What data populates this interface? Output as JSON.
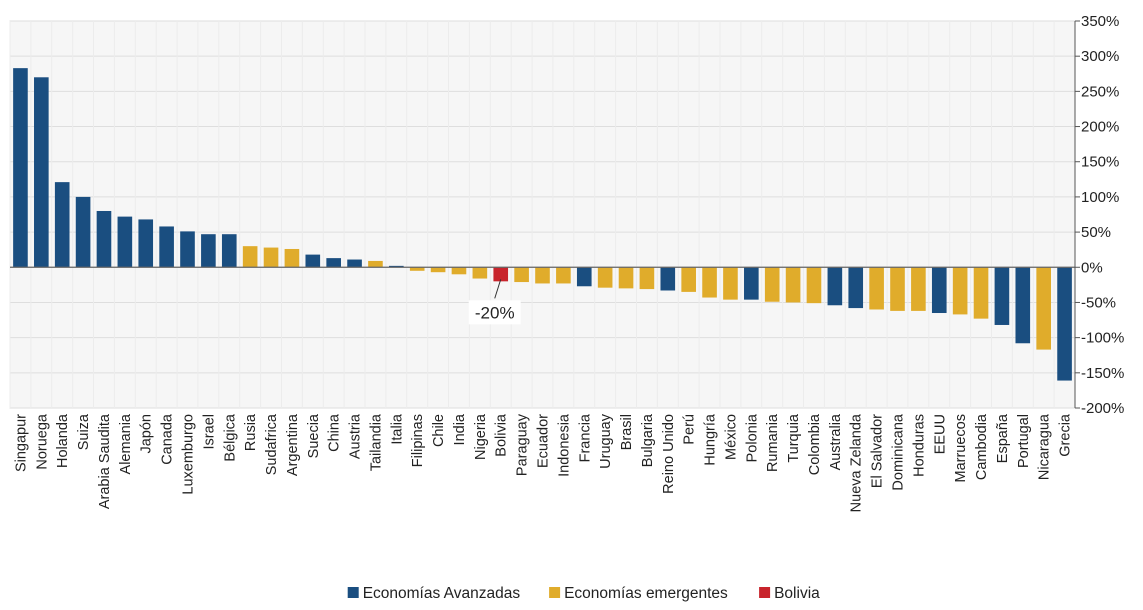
{
  "chart_data": {
    "type": "bar",
    "title": "",
    "xlabel": "",
    "ylabel": "",
    "ylim": [
      -200,
      350
    ],
    "y_ticks": [
      350,
      300,
      250,
      200,
      150,
      100,
      50,
      0,
      -50,
      -100,
      -150,
      -200
    ],
    "y_tick_labels": [
      "350%",
      "300%",
      "250%",
      "200%",
      "150%",
      "100%",
      "50%",
      "0%",
      "-50%",
      "-100%",
      "-150%",
      "-200%"
    ],
    "y_axis_side": "right",
    "grid": true,
    "legend_position": "bottom",
    "groups": [
      {
        "key": "adv",
        "label": "Economías Avanzadas",
        "color": "#1a4e80"
      },
      {
        "key": "emg",
        "label": "Economías emergentes",
        "color": "#e0ac2b"
      },
      {
        "key": "bol",
        "label": "Bolivia",
        "color": "#c8242c"
      }
    ],
    "categories": [
      "Singapur",
      "Noruega",
      "Holanda",
      "Suiza",
      "Arabia Saudita",
      "Alemania",
      "Japón",
      "Canada",
      "Luxemburgo",
      "Israel",
      "Bélgica",
      "Rusia",
      "Sudafrica",
      "Argentina",
      "Suecia",
      "China",
      "Austria",
      "Tailandia",
      "Italia",
      "Filipinas",
      "Chile",
      "India",
      "Nigeria",
      "Bolivia",
      "Paraguay",
      "Ecuador",
      "Indonesia",
      "Francia",
      "Uruguay",
      "Brasil",
      "Bulgaria",
      "Reino Unido",
      "Perú",
      "Hungría",
      "México",
      "Polonia",
      "Rumania",
      "Turquia",
      "Colombia",
      "Australia",
      "Nueva Zelanda",
      "El Salvador",
      "Dominicana",
      "Honduras",
      "EEUU",
      "Marruecos",
      "Cambodia",
      "España",
      "Portugal",
      "Nicaragua",
      "Grecia"
    ],
    "values": [
      283,
      270,
      121,
      100,
      80,
      72,
      68,
      58,
      51,
      47,
      47,
      30,
      28,
      26,
      18,
      13,
      11,
      9,
      2,
      -5,
      -7,
      -10,
      -16,
      -20,
      -21,
      -23,
      -23,
      -27,
      -29,
      -30,
      -31,
      -33,
      -35,
      -43,
      -46,
      -46,
      -49,
      -50,
      -51,
      -54,
      -58,
      -60,
      -62,
      -62,
      -65,
      -67,
      -73,
      -82,
      -108,
      -117,
      -161
    ],
    "value_groups": [
      "adv",
      "adv",
      "adv",
      "adv",
      "adv",
      "adv",
      "adv",
      "adv",
      "adv",
      "adv",
      "adv",
      "emg",
      "emg",
      "emg",
      "adv",
      "adv",
      "adv",
      "emg",
      "adv",
      "emg",
      "emg",
      "emg",
      "emg",
      "bol",
      "emg",
      "emg",
      "emg",
      "adv",
      "emg",
      "emg",
      "emg",
      "adv",
      "emg",
      "emg",
      "emg",
      "adv",
      "emg",
      "emg",
      "emg",
      "adv",
      "adv",
      "emg",
      "emg",
      "emg",
      "adv",
      "emg",
      "emg",
      "adv",
      "adv",
      "emg",
      "adv"
    ],
    "annotations": [
      {
        "category": "Bolivia",
        "text": "-20%"
      }
    ]
  }
}
